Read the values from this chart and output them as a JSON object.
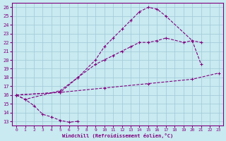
{
  "xlabel": "Windchill (Refroidissement éolien,°C)",
  "bg_color": "#c8eaf0",
  "line_color": "#800080",
  "grid_color": "#a0c8d8",
  "xlim": [
    -0.5,
    23.5
  ],
  "ylim": [
    12.5,
    26.5
  ],
  "xticks": [
    0,
    1,
    2,
    3,
    4,
    5,
    6,
    7,
    8,
    9,
    10,
    11,
    12,
    13,
    14,
    15,
    16,
    17,
    18,
    19,
    20,
    21,
    22,
    23
  ],
  "yticks": [
    13,
    14,
    15,
    16,
    17,
    18,
    19,
    20,
    21,
    22,
    23,
    24,
    25,
    26
  ],
  "series": [
    {
      "x": [
        0,
        1,
        2,
        3,
        4,
        5,
        6,
        7
      ],
      "y": [
        16.0,
        15.5,
        14.8,
        13.8,
        13.5,
        13.1,
        12.9,
        13.0
      ]
    },
    {
      "x": [
        0,
        1,
        5,
        7,
        9,
        10,
        11,
        12,
        13,
        14,
        15,
        16,
        17,
        20,
        21
      ],
      "y": [
        16.0,
        15.5,
        16.5,
        18.0,
        20.0,
        21.5,
        22.5,
        23.5,
        24.5,
        25.5,
        26.0,
        25.8,
        25.0,
        22.2,
        19.5
      ]
    },
    {
      "x": [
        0,
        5,
        7,
        9,
        10,
        11,
        12,
        13,
        14,
        15,
        16,
        17,
        19,
        20,
        21
      ],
      "y": [
        16.0,
        16.3,
        18.0,
        19.5,
        20.0,
        20.5,
        21.0,
        21.5,
        22.0,
        22.0,
        22.2,
        22.5,
        22.0,
        22.2,
        22.0
      ]
    },
    {
      "x": [
        0,
        5,
        10,
        15,
        20,
        23
      ],
      "y": [
        16.0,
        16.3,
        16.8,
        17.3,
        17.8,
        18.5
      ]
    }
  ]
}
